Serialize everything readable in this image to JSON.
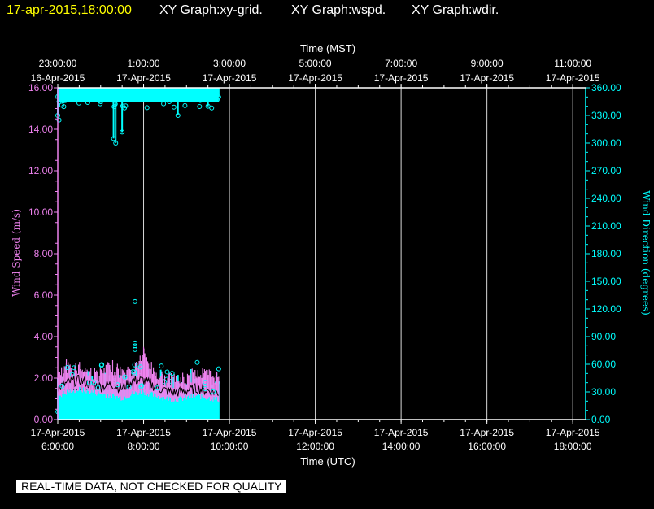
{
  "header": {
    "timestamp": "17-apr-2015,18:00:00",
    "graph_1": "XY Graph:xy-grid.",
    "graph_2": "XY Graph:wspd.",
    "graph_3": "XY Graph:wdir."
  },
  "disclaimer": "REAL-TIME DATA, NOT CHECKED FOR QUALITY",
  "colors": {
    "background": "#000000",
    "timestamp": "#ffff00",
    "header_text": "#ffffff",
    "wind_speed": "#ee82ee",
    "wind_direction": "#00ffff",
    "wind_speed_trace": "#000000",
    "grid": "#ffffff"
  },
  "chart_data": {
    "type": "line",
    "top_axis_title": "Time (MST)",
    "bottom_axis_title": "Time (UTC)",
    "left_axis_title": "Wind Speed (m/s)",
    "right_axis_title": "Wind Direction (degrees)",
    "x_range_utc_hours": [
      6,
      18.3
    ],
    "top_ticks": [
      {
        "time": "23:00:00",
        "date": "16-Apr-2015"
      },
      {
        "time": "1:00:00",
        "date": "17-Apr-2015"
      },
      {
        "time": "3:00:00",
        "date": "17-Apr-2015"
      },
      {
        "time": "5:00:00",
        "date": "17-Apr-2015"
      },
      {
        "time": "7:00:00",
        "date": "17-Apr-2015"
      },
      {
        "time": "9:00:00",
        "date": "17-Apr-2015"
      },
      {
        "time": "11:00:00",
        "date": "17-Apr-2015"
      }
    ],
    "bottom_ticks": [
      {
        "date": "17-Apr-2015",
        "time": "6:00:00"
      },
      {
        "date": "17-Apr-2015",
        "time": "8:00:00"
      },
      {
        "date": "17-Apr-2015",
        "time": "10:00:00"
      },
      {
        "date": "17-Apr-2015",
        "time": "12:00:00"
      },
      {
        "date": "17-Apr-2015",
        "time": "14:00:00"
      },
      {
        "date": "17-Apr-2015",
        "time": "16:00:00"
      },
      {
        "date": "17-Apr-2015",
        "time": "18:00:00"
      }
    ],
    "left_ticks": [
      "0.00",
      "2.00",
      "4.00",
      "6.00",
      "8.00",
      "10.00",
      "12.00",
      "14.00",
      "16.00"
    ],
    "right_ticks": [
      "0.00",
      "30.00",
      "60.00",
      "90.00",
      "120.00",
      "150.00",
      "180.00",
      "210.00",
      "240.00",
      "270.00",
      "300.00",
      "330.00",
      "360.00"
    ],
    "left_ylim": [
      0,
      16
    ],
    "right_ylim": [
      0,
      360
    ],
    "series": [
      {
        "name": "Wind Speed (m/s)",
        "axis": "left",
        "style": "line",
        "x_utc_hours": [
          6.0,
          6.25,
          6.5,
          6.75,
          7.0,
          7.25,
          7.5,
          7.75,
          8.0,
          8.25,
          8.5,
          8.75,
          9.0,
          9.25,
          9.5,
          9.75
        ],
        "y_mean": [
          1.5,
          1.8,
          1.9,
          1.7,
          1.6,
          1.7,
          1.5,
          1.9,
          1.9,
          1.6,
          1.4,
          1.3,
          1.4,
          1.5,
          1.4,
          1.3
        ],
        "y_max": [
          2.4,
          2.8,
          2.9,
          2.6,
          2.5,
          2.9,
          2.6,
          2.7,
          3.5,
          2.6,
          2.3,
          2.2,
          2.3,
          2.6,
          2.5,
          2.4
        ],
        "y_min": [
          1.0,
          1.2,
          1.3,
          1.2,
          1.1,
          1.0,
          0.9,
          1.1,
          1.2,
          1.0,
          0.9,
          0.8,
          0.9,
          1.0,
          0.9,
          0.8
        ]
      },
      {
        "name": "Wind Direction (degrees)",
        "axis": "right",
        "style": "scatter",
        "x_utc_hours": [
          6.0,
          6.1,
          6.2,
          6.3,
          6.4,
          6.5,
          6.6,
          6.7,
          6.8,
          6.9,
          7.0,
          7.1,
          7.2,
          7.3,
          7.35,
          7.4,
          7.45,
          7.5,
          7.6,
          7.7,
          7.8,
          7.9,
          8.0,
          8.1,
          8.2,
          8.3,
          8.4,
          8.5,
          8.6,
          8.7,
          8.8,
          8.9,
          9.0,
          9.1,
          9.2,
          9.3,
          9.4,
          9.5,
          9.6,
          9.7,
          9.75
        ],
        "y_upper": [
          330,
          350,
          355,
          352,
          356,
          350,
          355,
          352,
          355,
          350,
          345,
          355,
          350,
          305,
          300,
          352,
          349,
          312,
          350,
          355,
          352,
          350,
          355,
          350,
          354,
          352,
          356,
          350,
          345,
          352,
          330,
          348,
          353,
          350,
          355,
          352,
          349,
          340,
          350,
          355,
          350
        ],
        "y_lower": [
          0,
          5,
          8,
          4,
          10,
          6,
          9,
          12,
          5,
          8,
          0,
          6,
          4,
          10,
          3,
          5,
          0,
          8,
          15,
          7,
          6,
          9,
          5,
          7,
          10,
          6,
          8,
          4,
          9,
          5,
          7,
          6,
          8,
          10,
          5,
          7,
          6,
          9,
          5,
          8,
          10
        ],
        "outliers": [
          {
            "x": 7.8,
            "y": 128
          },
          {
            "x": 7.8,
            "y": 83
          },
          {
            "x": 7.8,
            "y": 80
          },
          {
            "x": 7.8,
            "y": 76
          },
          {
            "x": 7.75,
            "y": 52
          },
          {
            "x": 7.9,
            "y": 48
          },
          {
            "x": 9.25,
            "y": 62
          },
          {
            "x": 9.75,
            "y": 55
          },
          {
            "x": 6.03,
            "y": 345
          },
          {
            "x": 6.03,
            "y": 325
          }
        ]
      }
    ]
  }
}
